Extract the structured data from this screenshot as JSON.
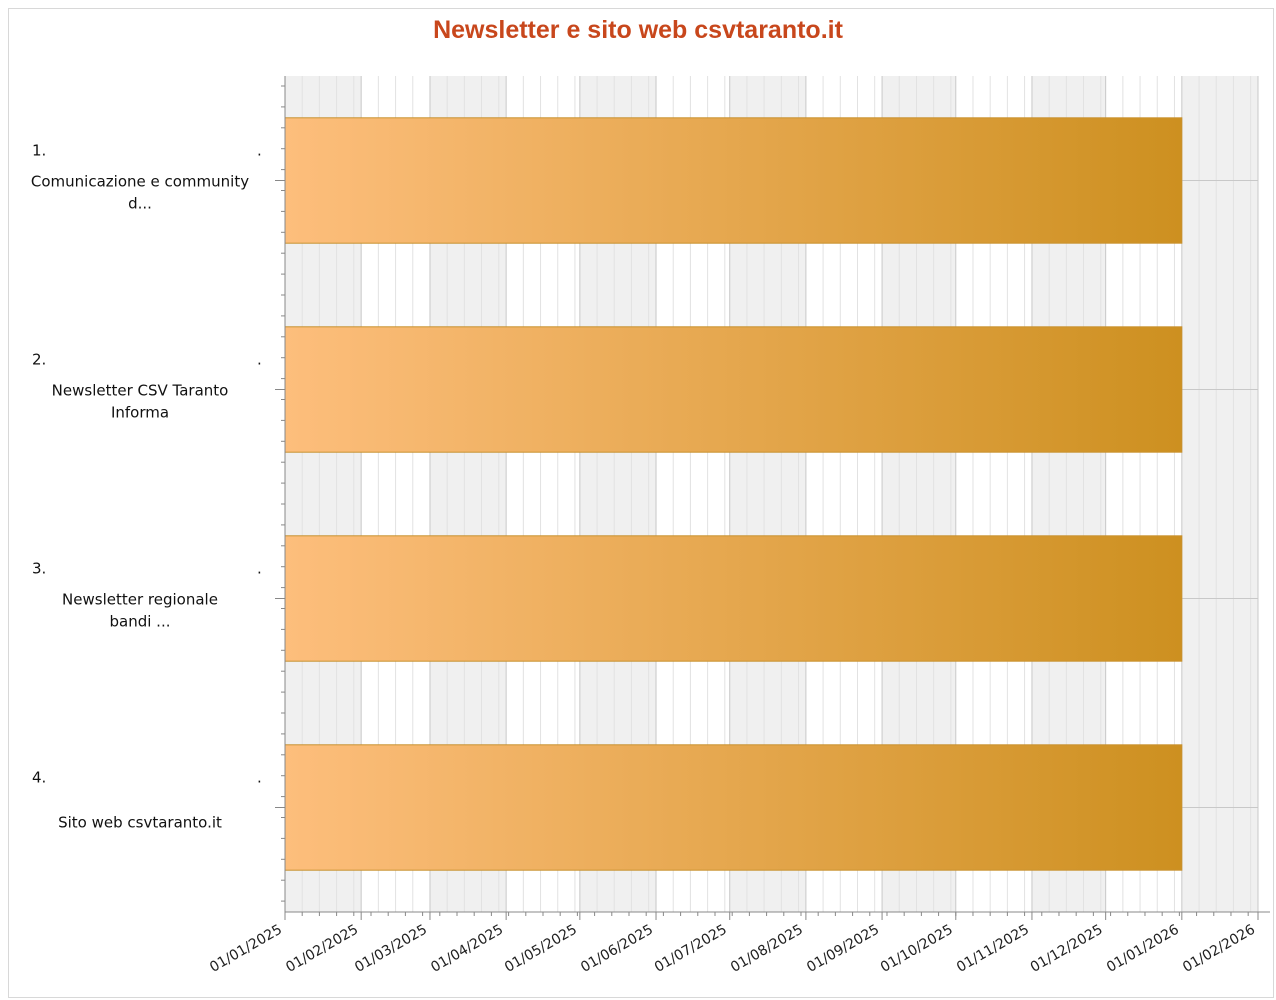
{
  "chart_data": {
    "type": "bar",
    "orientation": "horizontal",
    "title": "Newsletter e sito web csvtaranto.it",
    "title_color": "#c8471c",
    "x_axis": {
      "scale": "date",
      "range": [
        "2025-01-01",
        "2026-02-01"
      ],
      "tick_labels": [
        "01/01/2025",
        "01/02/2025",
        "01/03/2025",
        "01/04/2025",
        "01/05/2025",
        "01/06/2025",
        "01/07/2025",
        "01/08/2025",
        "01/09/2025",
        "01/10/2025",
        "01/11/2025",
        "01/12/2025",
        "01/01/2026",
        "01/02/2026"
      ],
      "grid": true
    },
    "categories": [
      {
        "number": "1.",
        "dot": ".",
        "label_lines": [
          "Comunicazione e community",
          "d..."
        ]
      },
      {
        "number": "2.",
        "dot": ".",
        "label_lines": [
          "Newsletter CSV Taranto",
          "Informa"
        ]
      },
      {
        "number": "3.",
        "dot": ".",
        "label_lines": [
          "Newsletter regionale",
          "bandi ..."
        ]
      },
      {
        "number": "4.",
        "dot": ".",
        "label_lines": [
          "Sito web csvtaranto.it"
        ]
      }
    ],
    "tasks": [
      {
        "start": "2025-01-01",
        "end": "2026-01-01"
      },
      {
        "start": "2025-01-01",
        "end": "2026-01-01"
      },
      {
        "start": "2025-01-01",
        "end": "2026-01-01"
      },
      {
        "start": "2025-01-01",
        "end": "2026-01-01"
      }
    ],
    "colors": {
      "bar_gradient_start": "#fdbe7c",
      "bar_gradient_end": "#cd9020",
      "bar_border": "#c9912e",
      "band_shaded": "#f0f0f0",
      "band_light": "#ffffff",
      "grid_major": "#c8c8c8",
      "grid_minor": "#e2e2e2"
    }
  }
}
